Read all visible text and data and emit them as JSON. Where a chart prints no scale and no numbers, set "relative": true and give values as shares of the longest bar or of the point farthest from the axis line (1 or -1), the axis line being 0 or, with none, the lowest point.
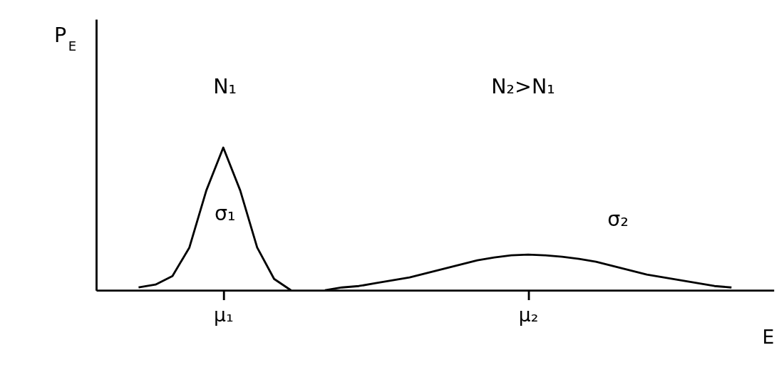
{
  "chart_data": {
    "type": "line",
    "relative": true,
    "xlabel": "E",
    "ylabel": "P$_{E}$",
    "categories": [
      null,
      null,
      null,
      null,
      null,
      null,
      null,
      "μ₁",
      null,
      null,
      null,
      null,
      null,
      null,
      null,
      null,
      null,
      null,
      null,
      null,
      null,
      null,
      null,
      null,
      null,
      "μ₂",
      null,
      null,
      null,
      null,
      null,
      null,
      null,
      null,
      null,
      null,
      null,
      null,
      null,
      null
    ],
    "tick_labels": "x",
    "grid": false,
    "legend": false,
    "marker": "none",
    "line_style": "solid",
    "series": [
      {
        "color": "#000000",
        "values": [
          null,
          null,
          0.02,
          0.04,
          0.1,
          0.3,
          0.7,
          1,
          0.7,
          0.3,
          0.08,
          0.0,
          null,
          null,
          null,
          null,
          null,
          null,
          null,
          null,
          null,
          null,
          null,
          null,
          null,
          null,
          null,
          null,
          null,
          null,
          null,
          null,
          null,
          null,
          null,
          null,
          null,
          null,
          null,
          null
        ]
      },
      {
        "color": "#000000",
        "values": [
          null,
          null,
          null,
          null,
          null,
          null,
          null,
          null,
          null,
          null,
          null,
          null,
          null,
          0.0,
          0.02,
          0.03,
          0.05,
          0.07,
          0.09,
          0.12,
          0.15,
          0.18,
          0.21,
          0.23,
          0.245,
          0.25,
          0.245,
          0.235,
          0.22,
          0.2,
          0.17,
          0.14,
          0.11,
          0.09,
          0.07,
          0.05,
          0.03,
          0.02,
          null,
          null
        ]
      }
    ],
    "annotations": [
      "N₁",
      "N₂>N₁",
      "σ₁",
      "σ₂"
    ]
  }
}
